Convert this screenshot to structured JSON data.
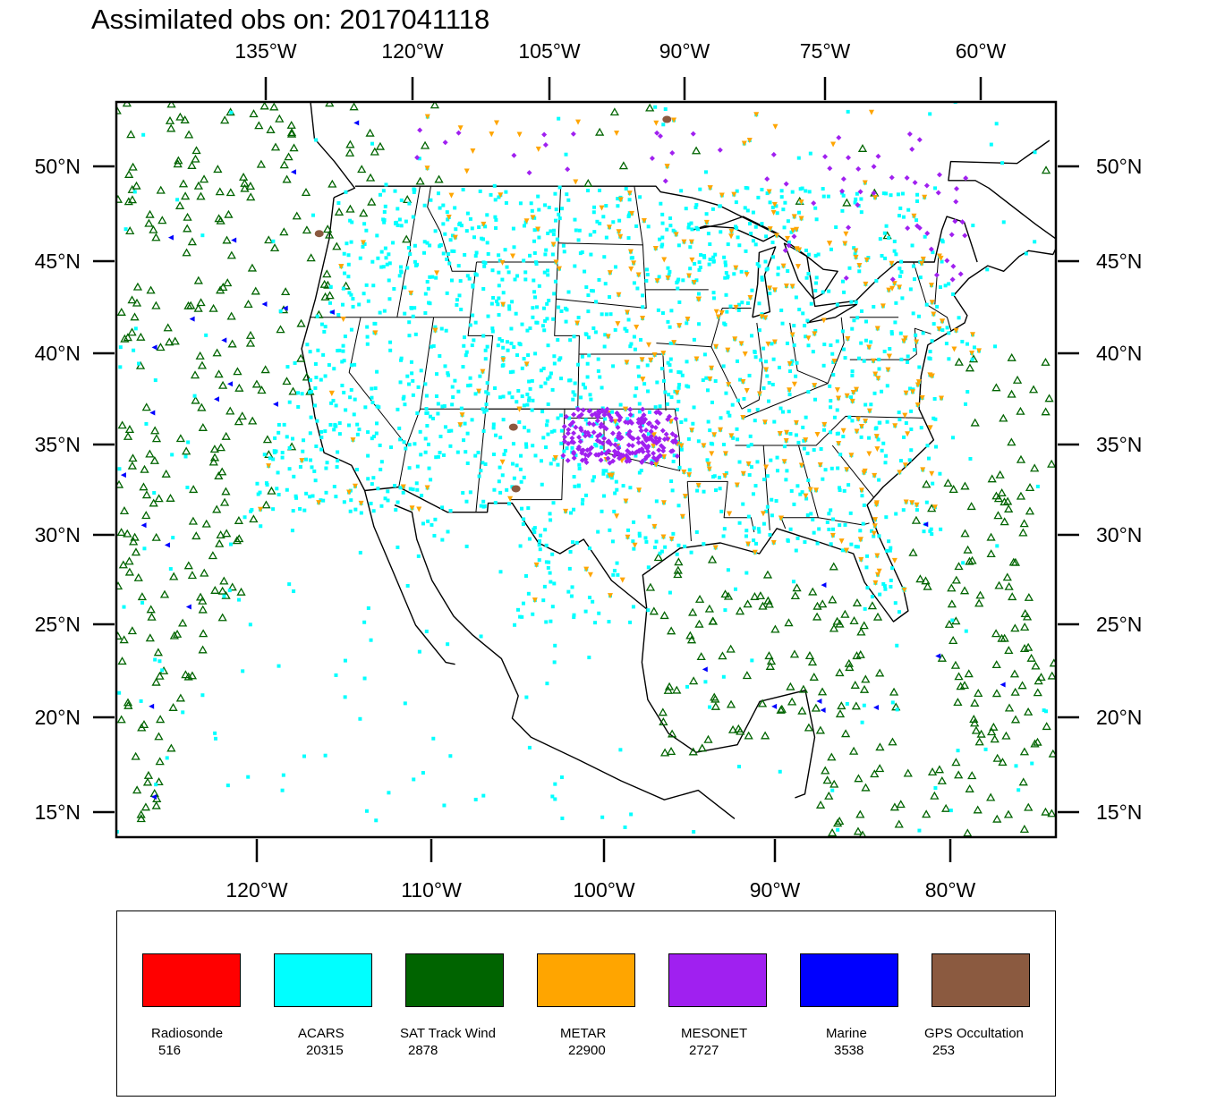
{
  "title": "Assimilated obs on: 2017041118",
  "axes": {
    "top_lon_labels": [
      "135°W",
      "120°W",
      "105°W",
      "90°W",
      "75°W",
      "60°W"
    ],
    "bottom_lon_labels": [
      "120°W",
      "110°W",
      "100°W",
      "90°W",
      "80°W"
    ],
    "lat_labels": [
      "50°N",
      "45°N",
      "40°N",
      "35°N",
      "30°N",
      "25°N",
      "20°N",
      "15°N"
    ]
  },
  "map": {
    "projection": "Lambert conformal (CONUS)",
    "lat_range": [
      14,
      53
    ],
    "lon_range": [
      -128,
      -57
    ],
    "features": [
      "coastlines",
      "US state borders",
      "country borders"
    ]
  },
  "legend": [
    {
      "label": "Radiosonde",
      "count": "516",
      "color": "#ff0000",
      "marker": "square"
    },
    {
      "label": "ACARS",
      "count": "20315",
      "color": "#00ffff",
      "marker": "square"
    },
    {
      "label": "SAT Track Wind",
      "count": "2878",
      "color": "#006400",
      "marker": "triangle-up"
    },
    {
      "label": "METAR",
      "count": "22900",
      "color": "#ffa500",
      "marker": "triangle-down"
    },
    {
      "label": "MESONET",
      "count": "2727",
      "color": "#a020f0",
      "marker": "diamond"
    },
    {
      "label": "Marine",
      "count": "3538",
      "color": "#0000ff",
      "marker": "triangle-left"
    },
    {
      "label": "GPS Occultation",
      "count": "253",
      "color": "#8b5a40",
      "marker": "blob"
    }
  ]
}
